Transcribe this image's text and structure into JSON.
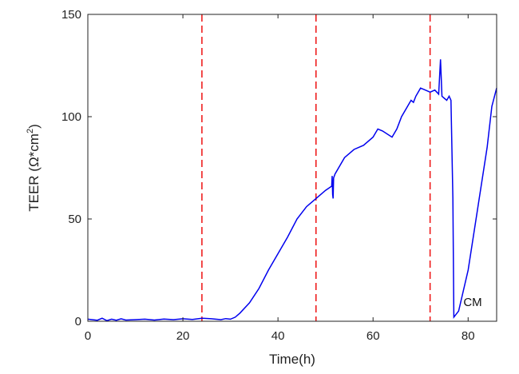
{
  "chart_data": {
    "type": "line",
    "title": "",
    "xlabel": "Time(h)",
    "ylabel_prefix": "TEER (Ω*cm",
    "ylabel_sup": "2",
    "ylabel_suffix": ")",
    "xlim": [
      0,
      86
    ],
    "ylim": [
      0,
      150
    ],
    "x_ticks": [
      0,
      20,
      40,
      60,
      80
    ],
    "y_ticks": [
      0,
      50,
      100,
      150
    ],
    "grid": false,
    "legend": "none",
    "colors": {
      "series": "#0000ee",
      "vlines": "#ee1111"
    },
    "vlines": [
      24,
      48,
      72
    ],
    "annotations": [
      {
        "text": "CM",
        "x": 79,
        "y": 5
      }
    ],
    "series": [
      {
        "x": [
          0,
          2,
          3,
          4,
          5,
          6,
          7,
          8,
          10,
          12,
          14,
          16,
          18,
          20,
          22,
          24,
          26,
          28,
          29,
          30,
          31,
          32,
          34,
          36,
          38,
          40,
          42,
          44,
          46,
          48,
          50,
          51.3,
          51.4,
          51.5,
          51.6,
          51.7,
          52,
          54,
          56,
          58,
          60,
          61,
          62,
          64,
          65,
          66,
          68,
          68.5,
          69,
          70,
          71,
          72,
          73,
          73.8,
          74.2,
          74.5,
          75,
          75.5,
          76,
          76.4,
          76.8,
          77,
          78,
          80,
          82,
          84,
          85,
          86
        ],
        "y": [
          1,
          0.5,
          1.5,
          0.3,
          1,
          0.5,
          1.2,
          0.6,
          0.8,
          1,
          0.6,
          1.1,
          0.8,
          1.2,
          0.9,
          1.5,
          1.2,
          0.8,
          1.3,
          1,
          2,
          4,
          9,
          16,
          25,
          33,
          41,
          50,
          56,
          60,
          64,
          66,
          71,
          62,
          60,
          70,
          72,
          80,
          84,
          86,
          90,
          94,
          93,
          90,
          94,
          100,
          108,
          107,
          110,
          114,
          113,
          112,
          113,
          111,
          128,
          110,
          109,
          108,
          110,
          108,
          60,
          2,
          5,
          25,
          55,
          85,
          105,
          114
        ]
      }
    ]
  }
}
